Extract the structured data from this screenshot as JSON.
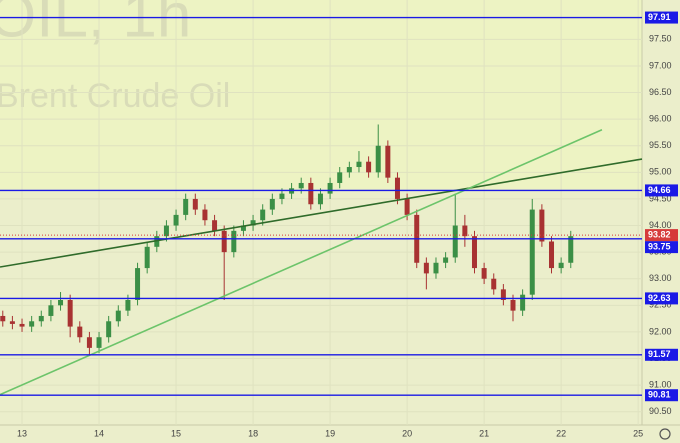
{
  "chart_data": {
    "type": "candlestick",
    "title": "OIL, 1h",
    "subtitle": "Brent Crude Oil",
    "x": [
      -0.25,
      -0.125,
      0,
      0.125,
      0.25,
      0.375,
      0.5,
      0.625,
      0.75,
      0.875,
      1,
      1.125,
      1.25,
      1.375,
      1.5,
      1.625,
      1.75,
      1.875,
      2,
      2.125,
      2.25,
      2.375,
      2.5,
      2.625,
      2.75,
      2.875,
      3,
      3.125,
      3.25,
      3.375,
      3.5,
      3.625,
      3.75,
      3.875,
      4,
      4.125,
      4.25,
      4.375,
      4.5,
      4.625,
      4.75,
      4.875,
      5,
      5.125,
      5.25,
      5.375,
      5.5,
      5.625,
      5.75,
      5.875,
      6,
      6.125,
      6.25,
      6.375,
      6.5,
      6.625,
      6.75,
      6.875,
      7,
      7.125
    ],
    "open": [
      92.3,
      92.2,
      92.15,
      92.1,
      92.2,
      92.3,
      92.5,
      92.6,
      92.1,
      91.9,
      91.7,
      91.9,
      92.2,
      92.4,
      92.6,
      93.2,
      93.6,
      93.8,
      94.0,
      94.2,
      94.5,
      94.3,
      94.1,
      93.9,
      93.5,
      93.9,
      94.0,
      94.1,
      94.3,
      94.5,
      94.6,
      94.7,
      94.8,
      94.4,
      94.6,
      94.8,
      95.0,
      95.1,
      95.2,
      95.0,
      95.5,
      94.9,
      94.5,
      94.2,
      93.3,
      93.1,
      93.3,
      93.4,
      94.0,
      93.8,
      93.2,
      93.0,
      92.8,
      92.6,
      92.4,
      92.7,
      94.3,
      93.7,
      93.2,
      93.3
    ],
    "high": [
      92.4,
      92.3,
      92.25,
      92.3,
      92.4,
      92.6,
      92.75,
      92.7,
      92.2,
      92.0,
      92.0,
      92.3,
      92.5,
      92.7,
      93.3,
      93.7,
      93.9,
      94.1,
      94.3,
      94.6,
      94.6,
      94.4,
      94.2,
      94.0,
      94.0,
      94.1,
      94.2,
      94.4,
      94.6,
      94.7,
      94.8,
      94.9,
      94.9,
      94.7,
      94.9,
      95.1,
      95.2,
      95.4,
      95.3,
      95.9,
      95.6,
      95.0,
      94.6,
      94.3,
      93.4,
      93.4,
      93.5,
      94.6,
      94.2,
      93.9,
      93.3,
      93.1,
      92.9,
      92.7,
      92.8,
      94.5,
      94.4,
      93.8,
      93.4,
      93.9
    ],
    "low": [
      92.1,
      92.05,
      92.0,
      92.0,
      92.1,
      92.2,
      92.4,
      91.9,
      91.8,
      91.55,
      91.6,
      91.8,
      92.1,
      92.3,
      92.5,
      93.1,
      93.5,
      93.7,
      93.9,
      94.1,
      94.2,
      94.0,
      93.8,
      92.6,
      93.4,
      93.8,
      93.9,
      94.0,
      94.2,
      94.4,
      94.5,
      94.6,
      94.3,
      94.3,
      94.5,
      94.7,
      94.9,
      95.0,
      94.9,
      94.9,
      94.8,
      94.4,
      94.1,
      93.2,
      92.8,
      93.0,
      93.2,
      93.3,
      93.6,
      93.1,
      92.9,
      92.7,
      92.5,
      92.2,
      92.3,
      92.6,
      93.6,
      93.1,
      93.1,
      93.2
    ],
    "close": [
      92.2,
      92.15,
      92.1,
      92.2,
      92.3,
      92.5,
      92.6,
      92.1,
      91.9,
      91.7,
      91.9,
      92.2,
      92.4,
      92.6,
      93.2,
      93.6,
      93.8,
      94.0,
      94.2,
      94.5,
      94.3,
      94.1,
      93.9,
      93.5,
      93.9,
      94.0,
      94.1,
      94.3,
      94.5,
      94.6,
      94.7,
      94.8,
      94.4,
      94.6,
      94.8,
      95.0,
      95.1,
      95.2,
      95.0,
      95.5,
      94.9,
      94.5,
      94.2,
      93.3,
      93.1,
      93.3,
      93.4,
      94.0,
      93.8,
      93.2,
      93.0,
      92.8,
      92.6,
      92.4,
      92.7,
      94.3,
      93.7,
      93.2,
      93.3,
      93.8
    ],
    "up_color": "#3b8f46",
    "down_color": "#a83232",
    "levels": [
      97.91,
      94.66,
      93.75,
      92.63,
      91.57,
      90.81
    ],
    "level_color": "#1a1ae6",
    "last_price": 93.82,
    "last_price_color": "#d63a3a",
    "trend_lines": [
      {
        "color": "#2f6b2a",
        "x": [
          -0.286,
          8.05
        ],
        "y": [
          93.22,
          95.25
        ]
      },
      {
        "color": "#6cc46a",
        "x": [
          -0.286,
          7.53
        ],
        "y": [
          90.82,
          95.8
        ]
      }
    ],
    "xlim": [
      -0.286,
      8.05
    ],
    "ylim": [
      90.25,
      98.24
    ],
    "xticks": [
      {
        "value": 0,
        "label": "13"
      },
      {
        "value": 1,
        "label": "14"
      },
      {
        "value": 2,
        "label": "15"
      },
      {
        "value": 3,
        "label": "18"
      },
      {
        "value": 4,
        "label": "19"
      },
      {
        "value": 5,
        "label": "20"
      },
      {
        "value": 6,
        "label": "21"
      },
      {
        "value": 7,
        "label": "22"
      },
      {
        "value": 8,
        "label": "25"
      }
    ],
    "yticks": [
      {
        "value": 97.5,
        "label": "97.50"
      },
      {
        "value": 97,
        "label": "97.00"
      },
      {
        "value": 96.5,
        "label": "96.50"
      },
      {
        "value": 96,
        "label": "96.00"
      },
      {
        "value": 95.5,
        "label": "95.50"
      },
      {
        "value": 95,
        "label": "95.00"
      },
      {
        "value": 94.5,
        "label": "94.50"
      },
      {
        "value": 94,
        "label": "94.00"
      },
      {
        "value": 93.5,
        "label": "93.50"
      },
      {
        "value": 93,
        "label": "93.00"
      },
      {
        "value": 92.5,
        "label": "92.50"
      },
      {
        "value": 92,
        "label": "92.00"
      },
      {
        "value": 91.5,
        "label": "91.50"
      },
      {
        "value": 91,
        "label": "91.00"
      },
      {
        "value": 90.5,
        "label": "90.50"
      }
    ],
    "grid": true
  }
}
